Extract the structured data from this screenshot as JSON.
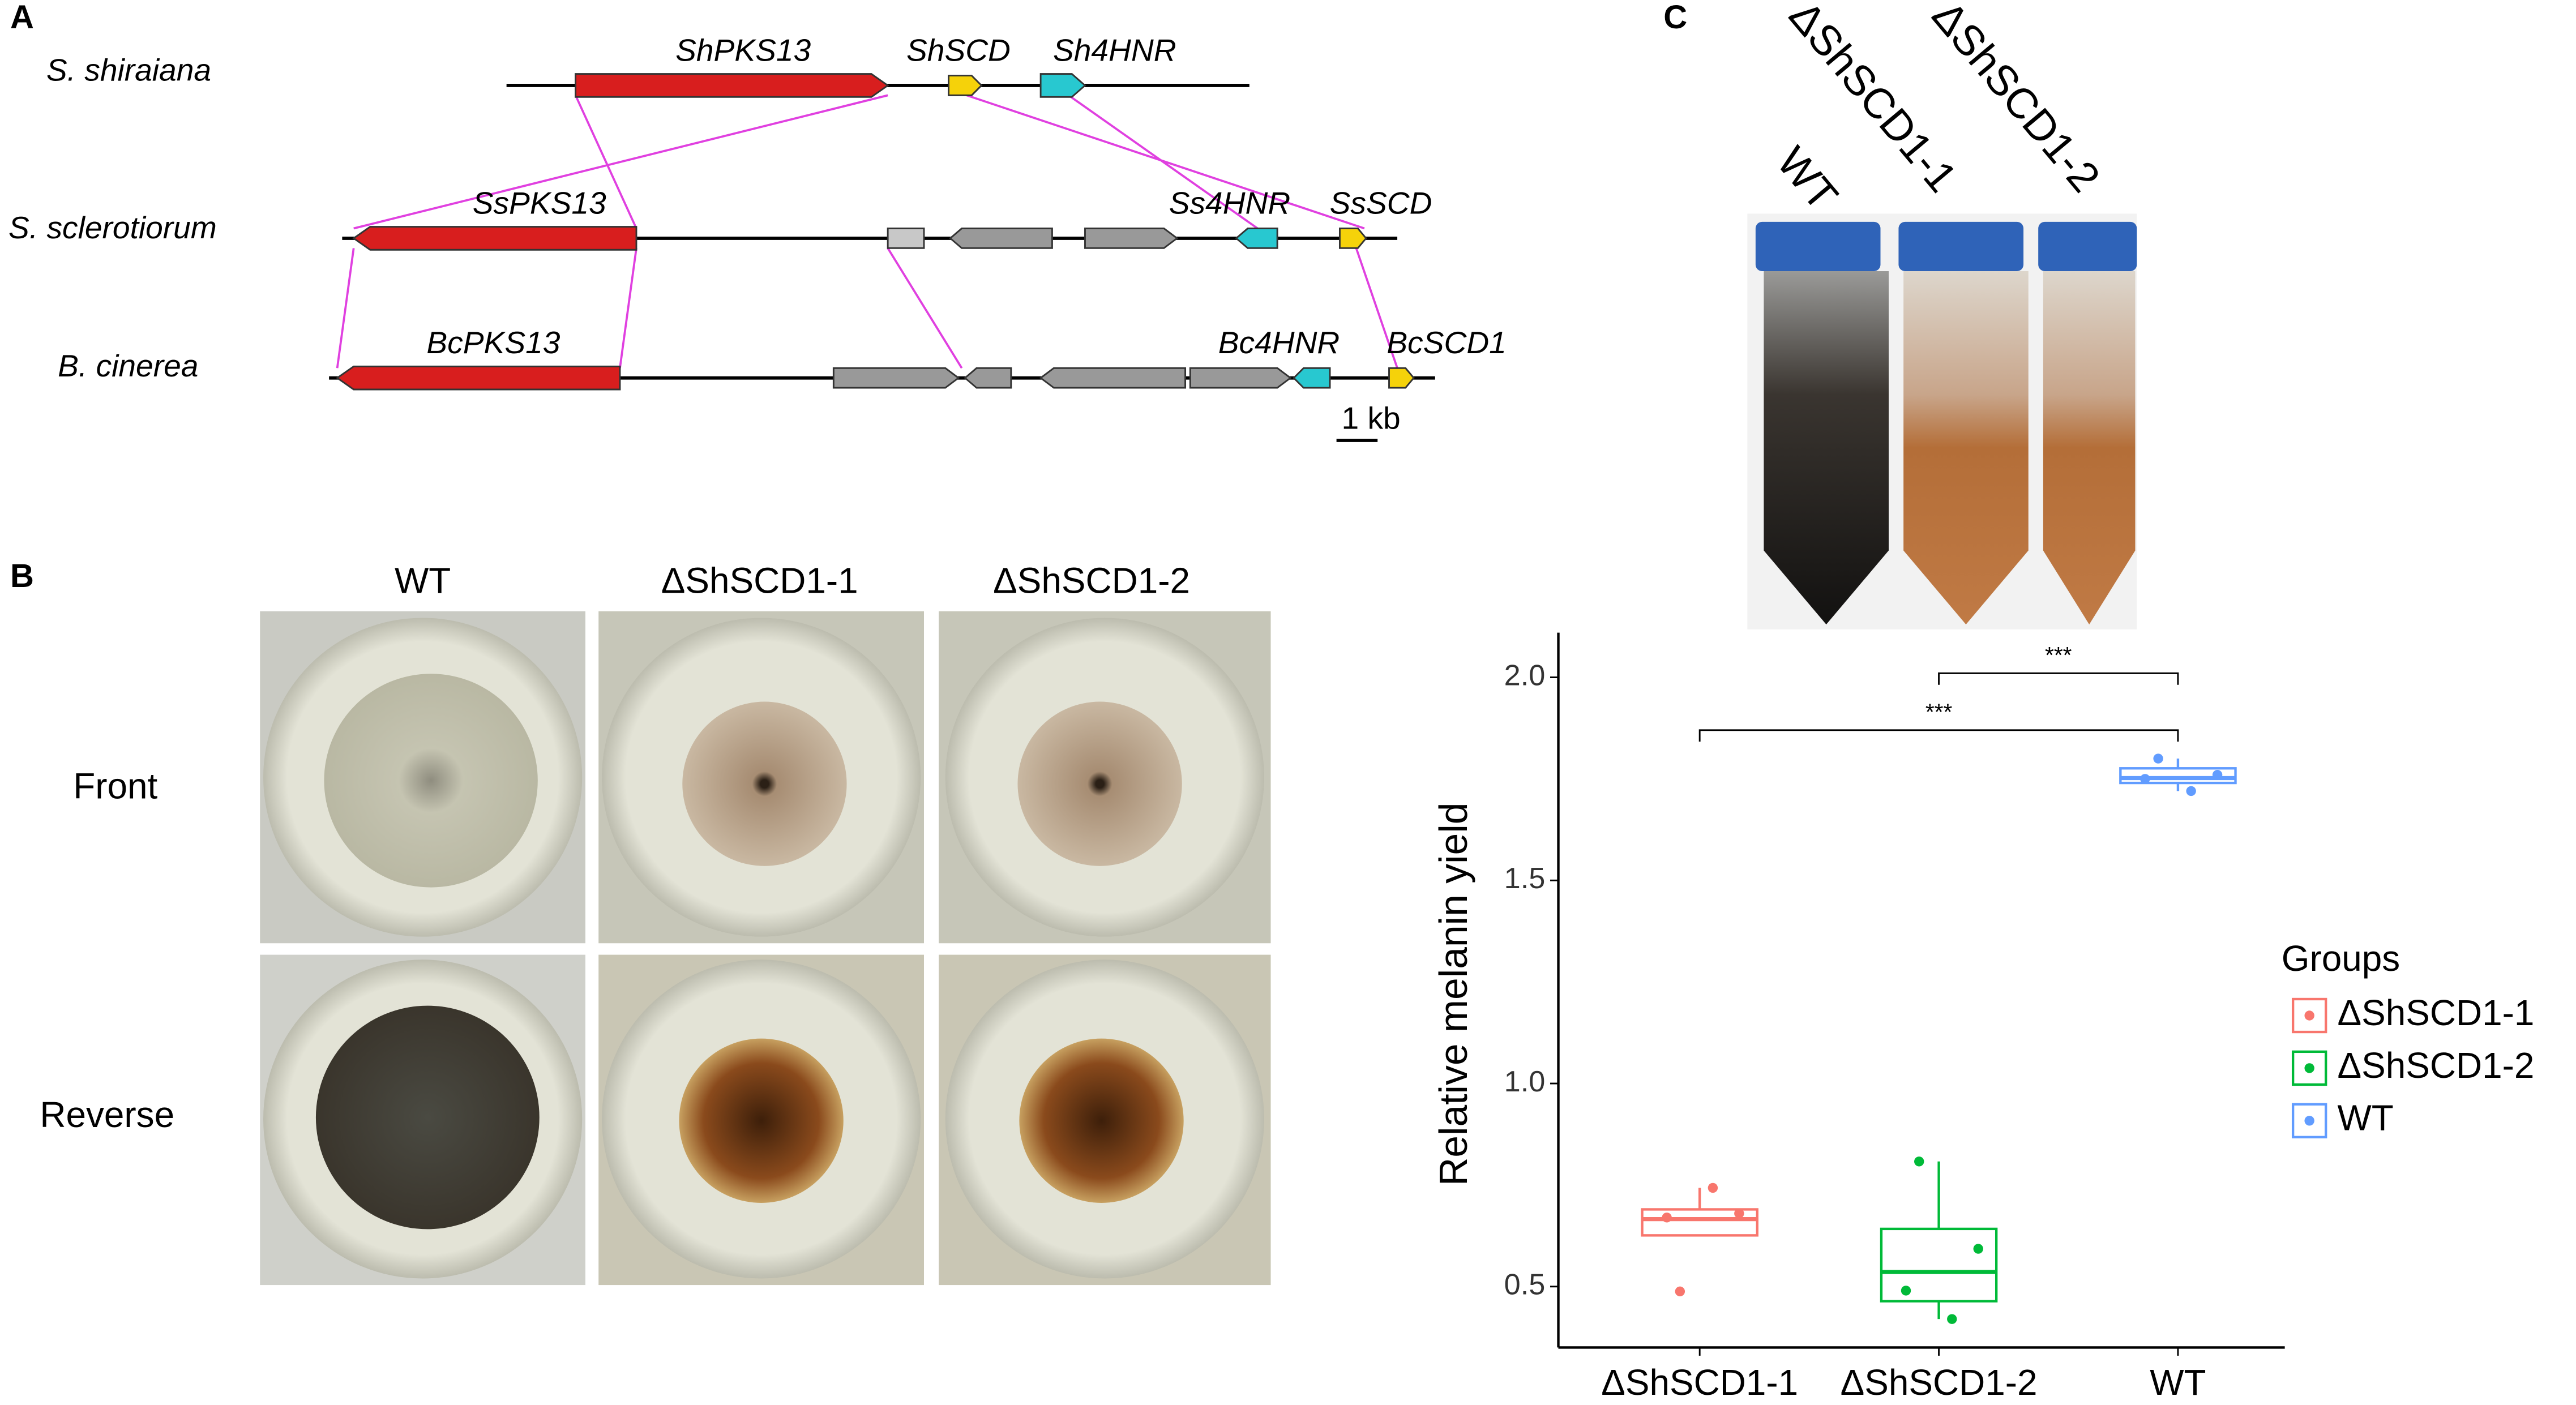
{
  "panels": {
    "a": "A",
    "b": "B",
    "c": "C"
  },
  "gene_cluster": {
    "species": [
      "S. shiraiana",
      "S. sclerotiorum",
      "B. cinerea"
    ],
    "genes": {
      "ShPKS13": "ShPKS13",
      "ShSCD": "ShSCD",
      "Sh4HNR": "Sh4HNR",
      "SsPKS13": "SsPKS13",
      "Ss4HNR": "Ss4HNR",
      "SsSCD": "SsSCD",
      "BcPKS13": "BcPKS13",
      "Bc4HNR": "Bc4HNR",
      "BcSCD1": "BcSCD1"
    },
    "scale_bar": "1 kb"
  },
  "plates": {
    "columns": [
      "WT",
      "ΔShSCD1-1",
      "ΔShSCD1-2"
    ],
    "rows": [
      "Front",
      "Reverse"
    ]
  },
  "tubes": {
    "labels": [
      "WT",
      "ΔShSCD1-1",
      "ΔShSCD1-2"
    ]
  },
  "chart_data": {
    "type": "box",
    "y_label": "Relative melanin yield",
    "categories": [
      "ΔShSCD1-1",
      "ΔShSCD1-2",
      "WT"
    ],
    "legend_title": "Groups",
    "series": [
      {
        "name": "ΔShSCD1-1",
        "color": "#f8766d",
        "box": {
          "whisker_low": 0.626,
          "q1": 0.626,
          "median": 0.666,
          "q3": 0.69,
          "whisker_high": 0.743
        },
        "points": [
          0.488,
          0.68,
          0.67,
          0.743
        ]
      },
      {
        "name": "ΔShSCD1-2",
        "color": "#00ba38",
        "box": {
          "whisker_low": 0.42,
          "q1": 0.464,
          "median": 0.536,
          "q3": 0.642,
          "whisker_high": 0.808
        },
        "points": [
          0.808,
          0.593,
          0.49,
          0.42
        ]
      },
      {
        "name": "WT",
        "color": "#619cff",
        "box": {
          "whisker_low": 1.72,
          "q1": 1.74,
          "median": 1.752,
          "q3": 1.776,
          "whisker_high": 1.8
        },
        "points": [
          1.8,
          1.76,
          1.75,
          1.72
        ]
      }
    ],
    "ylim": [
      0.35,
      2.11
    ],
    "yticks": [
      0.5,
      1.0,
      1.5,
      2.0
    ],
    "annotations": [
      {
        "text": "***",
        "y": 2.01,
        "between": [
          1,
          2
        ]
      },
      {
        "text": "***",
        "y": 1.87,
        "between": [
          0,
          2
        ]
      }
    ]
  }
}
